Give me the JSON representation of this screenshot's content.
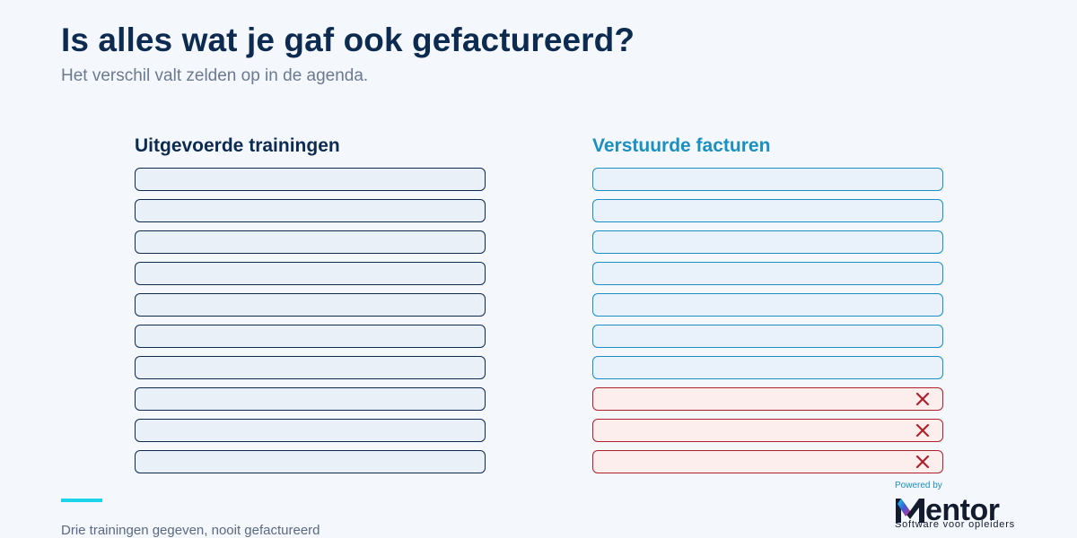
{
  "header": {
    "title": "Is alles wat je gaf ook gefactureerd?",
    "subtitle": "Het verschil valt zelden op in de agenda."
  },
  "columns": {
    "trainings": {
      "heading": "Uitgevoerde trainingen",
      "row_count": 10
    },
    "invoices": {
      "heading": "Verstuurde facturen",
      "row_count": 10,
      "missing_rows": [
        8,
        9,
        10
      ],
      "missing_icon": "close-x-icon"
    }
  },
  "footer": {
    "note": "Drie trainingen gegeven, nooit gefactureerd"
  },
  "brand": {
    "powered_by": "Powered by",
    "name": "Mentor",
    "name_rest": "entor",
    "tagline": "Software voor opleiders"
  },
  "colors": {
    "navy": "#0d2b50",
    "invoice_blue": "#1a8fc2",
    "missing_red": "#b0202c",
    "accent_cyan": "#1ad4ec"
  }
}
